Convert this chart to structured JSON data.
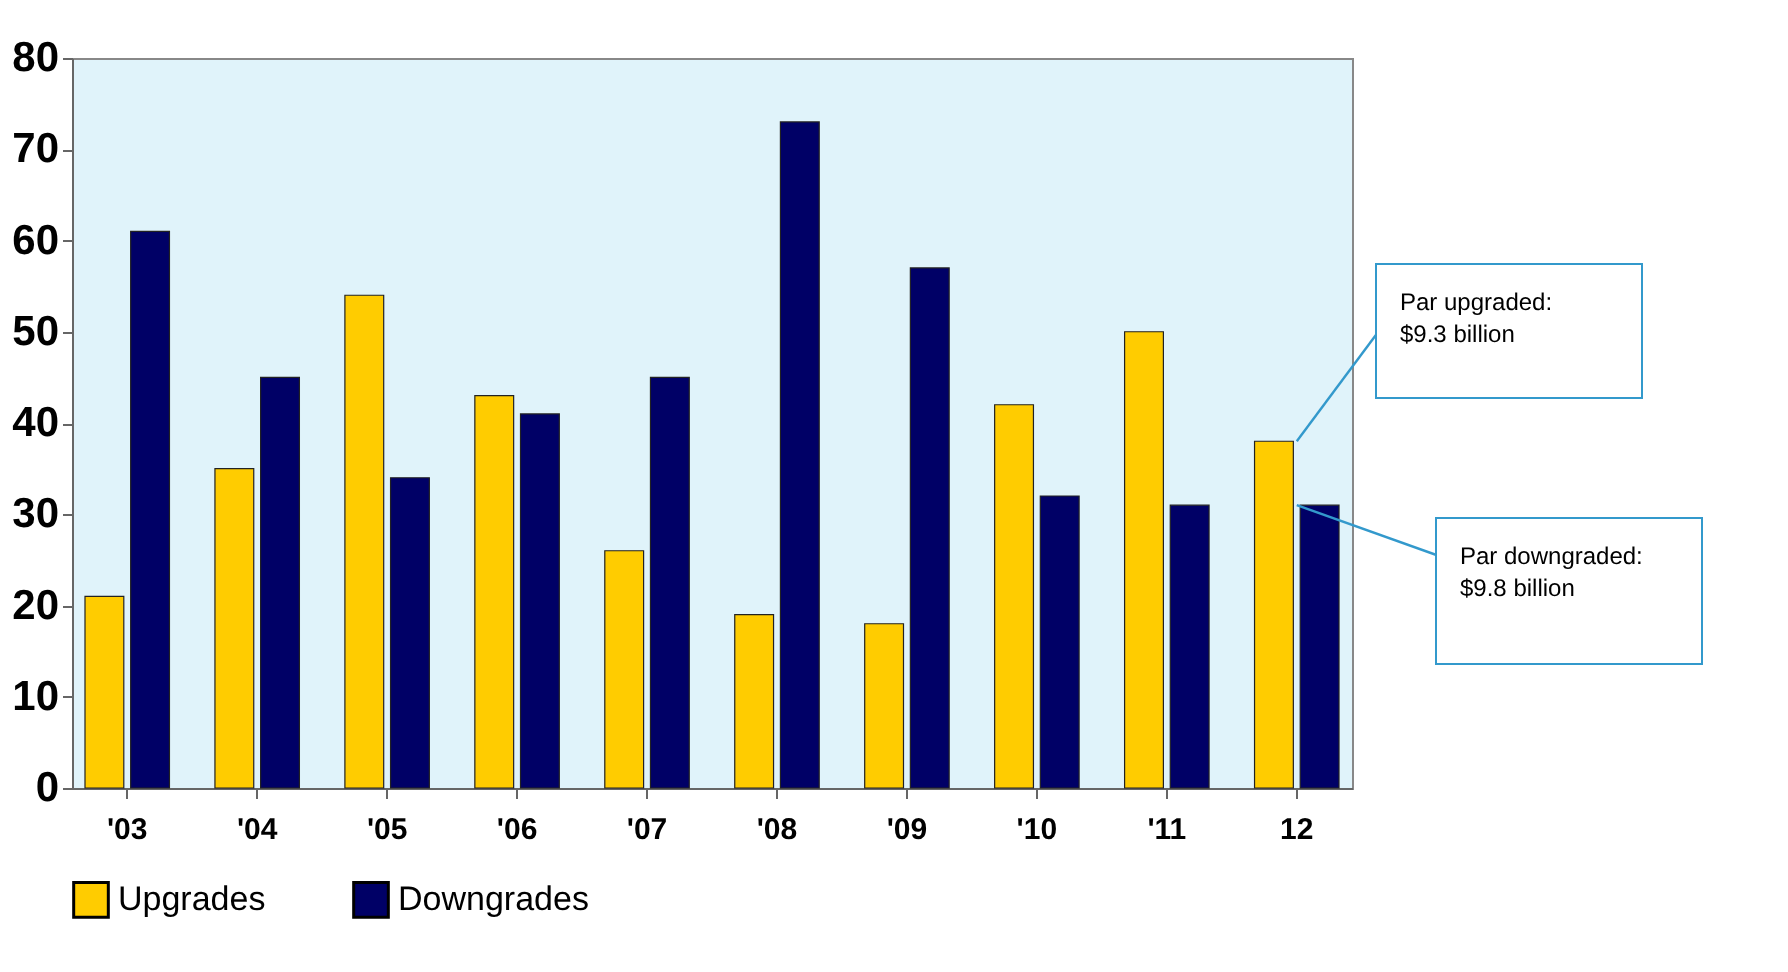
{
  "chart_data": {
    "type": "bar",
    "categories": [
      "'03",
      "'04",
      "'05",
      "'06",
      "'07",
      "'08",
      "'09",
      "'10",
      "'11",
      "12"
    ],
    "series": [
      {
        "name": "Upgrades",
        "color": "#ffcc00",
        "values": [
          21,
          35,
          54,
          43,
          26,
          19,
          18,
          42,
          50,
          38
        ]
      },
      {
        "name": "Downgrades",
        "color": "#000066",
        "values": [
          61,
          45,
          34,
          41,
          45,
          73,
          57,
          32,
          31,
          31
        ]
      }
    ],
    "ylim": [
      0,
      80
    ],
    "yticks": [
      0,
      10,
      20,
      30,
      40,
      50,
      60,
      70,
      80
    ],
    "grid": false,
    "legend": "bottom",
    "annotations": [
      {
        "text": "Par upgraded:\n$9.3 billion",
        "x": "12",
        "y": 38
      },
      {
        "text": "Par downgraded:\n$9.8 billion",
        "x": "12",
        "y": 31
      }
    ]
  }
}
